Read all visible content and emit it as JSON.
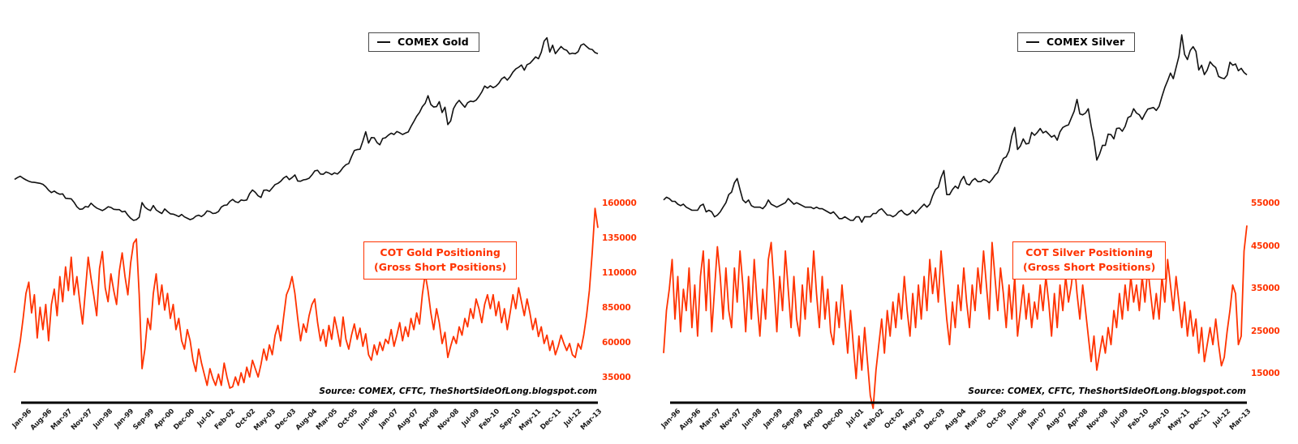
{
  "colors": {
    "price_line": "#111111",
    "cot_line": "#ff3300",
    "axis_line": "#000000",
    "legend_border": "#4a4a4a",
    "background": "#ffffff"
  },
  "x_labels": [
    "Jan-96",
    "Aug-96",
    "Mar-97",
    "Nov-97",
    "Jun-98",
    "Jan-99",
    "Sep-99",
    "Apr-00",
    "Dec-00",
    "Jul-01",
    "Feb-02",
    "Oct-02",
    "May-03",
    "Dec-03",
    "Aug-04",
    "Mar-05",
    "Oct-05",
    "Jun-06",
    "Jan-07",
    "Aug-07",
    "Apr-08",
    "Nov-08",
    "Jul-09",
    "Feb-10",
    "Sep-10",
    "May-11",
    "Dec-11",
    "Jul-12",
    "Mar-13"
  ],
  "chart_data": [
    {
      "type": "line",
      "legend": "COMEX Gold",
      "cot_label_line1": "COT Gold Positioning",
      "cot_label_line2": "(Gross Short Positions)",
      "source_note": "Source: COMEX, CFTC, TheShortSideOfLong.blogspot.com",
      "y_ticks": [
        160000,
        135000,
        110000,
        85000,
        60000,
        35000
      ],
      "x_range": [
        "Jan-96",
        "Mar-13"
      ],
      "series": [
        {
          "name": "COMEX Gold price (USD/oz)",
          "scale": "log",
          "ylim": [
            255,
            2400
          ],
          "color": "#111111",
          "values": [
            400,
            408,
            414,
            405,
            398,
            392,
            388,
            387,
            385,
            383,
            379,
            369,
            355,
            346,
            352,
            344,
            340,
            341,
            325,
            324,
            323,
            311,
            296,
            288,
            289,
            297,
            295,
            308,
            299,
            292,
            288,
            284,
            289,
            296,
            294,
            288,
            287,
            287,
            280,
            282,
            270,
            261,
            255,
            257,
            264,
            310,
            295,
            288,
            284,
            300,
            286,
            280,
            275,
            289,
            281,
            274,
            273,
            270,
            266,
            272,
            265,
            261,
            257,
            260,
            267,
            270,
            266,
            272,
            283,
            281,
            275,
            276,
            281,
            295,
            301,
            302,
            314,
            321,
            313,
            310,
            319,
            317,
            319,
            342,
            356,
            347,
            334,
            328,
            355,
            356,
            351,
            364,
            378,
            383,
            392,
            406,
            414,
            399,
            408,
            420,
            393,
            392,
            398,
            400,
            405,
            420,
            439,
            442,
            424,
            423,
            434,
            429,
            421,
            430,
            424,
            437,
            456,
            470,
            476,
            513,
            549,
            555,
            557,
            610,
            675,
            596,
            633,
            632,
            599,
            585,
            627,
            632,
            650,
            664,
            655,
            677,
            667,
            655,
            665,
            673,
            715,
            755,
            800,
            834,
            889,
            922,
            1003,
            910,
            885,
            889,
            939,
            833,
            884,
            730,
            760,
            870,
            919,
            952,
            916,
            883,
            928,
            945,
            939,
            955,
            995,
            1045,
            1115,
            1090,
            1118,
            1095,
            1113,
            1148,
            1205,
            1232,
            1190,
            1235,
            1300,
            1345,
            1370,
            1405,
            1327,
            1410,
            1430,
            1480,
            1535,
            1505,
            1615,
            1825,
            1895,
            1620,
            1745,
            1590,
            1655,
            1720,
            1670,
            1650,
            1585,
            1600,
            1590,
            1625,
            1745,
            1770,
            1720,
            1675,
            1665,
            1610,
            1590
          ]
        },
        {
          "name": "COT Gold Gross Short Positions (contracts)",
          "scale": "linear",
          "color": "#ff3300",
          "values": [
            39000,
            50000,
            62000,
            78000,
            96000,
            104000,
            82000,
            95000,
            64000,
            86000,
            70000,
            88000,
            62000,
            88000,
            99000,
            80000,
            108000,
            90000,
            115000,
            98000,
            122000,
            95000,
            108000,
            90000,
            74000,
            98000,
            122000,
            107000,
            94000,
            80000,
            114000,
            126000,
            100000,
            90000,
            110000,
            98000,
            88000,
            112000,
            125000,
            108000,
            95000,
            118000,
            132000,
            135000,
            95000,
            42000,
            56000,
            78000,
            70000,
            96000,
            110000,
            88000,
            102000,
            84000,
            96000,
            78000,
            88000,
            70000,
            78000,
            62000,
            56000,
            70000,
            62000,
            48000,
            40000,
            56000,
            46000,
            38000,
            30000,
            42000,
            35000,
            30000,
            38000,
            30000,
            46000,
            36000,
            28000,
            29000,
            36000,
            30000,
            39000,
            32000,
            43000,
            36000,
            48000,
            42000,
            36000,
            45000,
            56000,
            48000,
            59000,
            52000,
            66000,
            73000,
            62000,
            79000,
            95000,
            100000,
            108000,
            96000,
            78000,
            62000,
            74000,
            68000,
            80000,
            88000,
            92000,
            75000,
            62000,
            70000,
            58000,
            73000,
            63000,
            79000,
            69000,
            58000,
            79000,
            63000,
            56000,
            66000,
            74000,
            63000,
            71000,
            58000,
            67000,
            52000,
            48000,
            59000,
            52000,
            61000,
            55000,
            63000,
            60000,
            70000,
            58000,
            66000,
            75000,
            62000,
            72000,
            65000,
            78000,
            70000,
            82000,
            74000,
            95000,
            110000,
            98000,
            82000,
            70000,
            85000,
            75000,
            60000,
            68000,
            50000,
            58000,
            65000,
            60000,
            72000,
            66000,
            78000,
            72000,
            85000,
            78000,
            92000,
            85000,
            75000,
            88000,
            95000,
            85000,
            95000,
            80000,
            90000,
            75000,
            85000,
            70000,
            82000,
            95000,
            85000,
            100000,
            90000,
            80000,
            92000,
            82000,
            70000,
            78000,
            65000,
            72000,
            60000,
            66000,
            55000,
            62000,
            52000,
            58000,
            66000,
            60000,
            55000,
            60000,
            52000,
            50000,
            60000,
            56000,
            66000,
            80000,
            98000,
            125000,
            157000,
            143000
          ]
        }
      ]
    },
    {
      "type": "line",
      "legend": "COMEX Silver",
      "cot_label_line1": "COT Silver Positioning",
      "cot_label_line2": "(Gross Short Positions)",
      "source_note": "Source: COMEX, CFTC, TheShortSideOfLong.blogspot.com",
      "y_ticks": [
        55000,
        45000,
        35000,
        25000,
        15000
      ],
      "x_range": [
        "Jan-96",
        "Mar-13"
      ],
      "series": [
        {
          "name": "COMEX Silver price (USD/oz)",
          "scale": "log",
          "ylim": [
            4.2,
            62
          ],
          "color": "#111111",
          "values": [
            5.5,
            5.7,
            5.6,
            5.4,
            5.4,
            5.2,
            5.1,
            5.2,
            5.0,
            4.9,
            4.8,
            4.8,
            4.8,
            5.1,
            5.2,
            4.7,
            4.8,
            4.7,
            4.4,
            4.5,
            4.7,
            5.0,
            5.3,
            5.9,
            6.1,
            6.9,
            7.3,
            6.3,
            5.5,
            5.3,
            5.5,
            5.1,
            5.0,
            5.0,
            5.0,
            4.9,
            5.1,
            5.5,
            5.2,
            5.1,
            5.0,
            5.1,
            5.2,
            5.3,
            5.6,
            5.4,
            5.2,
            5.3,
            5.2,
            5.1,
            5.0,
            5.0,
            5.0,
            4.9,
            5.0,
            4.9,
            4.9,
            4.8,
            4.7,
            4.6,
            4.7,
            4.5,
            4.3,
            4.3,
            4.4,
            4.3,
            4.2,
            4.2,
            4.4,
            4.4,
            4.1,
            4.4,
            4.4,
            4.4,
            4.6,
            4.6,
            4.8,
            4.9,
            4.7,
            4.5,
            4.5,
            4.4,
            4.5,
            4.7,
            4.8,
            4.6,
            4.5,
            4.6,
            4.8,
            4.6,
            4.8,
            5.0,
            5.2,
            5.0,
            5.2,
            5.8,
            6.3,
            6.5,
            7.4,
            8.1,
            5.9,
            5.9,
            6.3,
            6.6,
            6.4,
            7.1,
            7.5,
            6.8,
            6.7,
            7.1,
            7.3,
            7.0,
            7.0,
            7.2,
            7.1,
            6.9,
            7.2,
            7.6,
            7.9,
            8.7,
            9.5,
            9.7,
            10.5,
            12.8,
            14.3,
            10.7,
            11.2,
            12.3,
            11.5,
            11.6,
            13.4,
            12.9,
            13.4,
            14.1,
            13.3,
            13.6,
            13.1,
            12.6,
            12.9,
            12.1,
            13.5,
            14.3,
            14.6,
            14.8,
            16.2,
            17.7,
            20.7,
            17.1,
            16.9,
            17.3,
            18.3,
            14.6,
            12.1,
            9.3,
            10.1,
            11.3,
            11.3,
            13.1,
            13.0,
            12.3,
            14.1,
            14.2,
            13.6,
            14.5,
            16.3,
            16.6,
            18.3,
            17.3,
            16.9,
            15.9,
            17.1,
            18.2,
            18.4,
            18.6,
            17.9,
            18.9,
            21.5,
            24.2,
            26.5,
            29.3,
            27.2,
            31.5,
            36.5,
            48.5,
            37.5,
            35.0,
            39.5,
            41.5,
            39.0,
            30.5,
            32.5,
            28.7,
            30.5,
            34.0,
            32.5,
            31.5,
            28.0,
            27.5,
            27.2,
            28.5,
            33.8,
            32.5,
            33.0,
            30.2,
            31.2,
            29.5,
            28.6
          ]
        },
        {
          "name": "COT Silver Gross Short Positions (contracts)",
          "scale": "linear",
          "color": "#ff3300",
          "values": [
            20000,
            30000,
            35000,
            42000,
            28000,
            38000,
            25000,
            35000,
            30000,
            40000,
            26000,
            36000,
            24000,
            38000,
            44000,
            30000,
            42000,
            25000,
            35000,
            45000,
            38000,
            28000,
            40000,
            30000,
            26000,
            40000,
            32000,
            44000,
            36000,
            25000,
            38000,
            28000,
            42000,
            32000,
            24000,
            35000,
            28000,
            42000,
            46000,
            36000,
            25000,
            38000,
            30000,
            44000,
            35000,
            26000,
            38000,
            28000,
            24000,
            36000,
            28000,
            40000,
            32000,
            44000,
            34000,
            26000,
            38000,
            28000,
            35000,
            25000,
            22000,
            32000,
            26000,
            36000,
            28000,
            20000,
            30000,
            22000,
            14000,
            24000,
            16000,
            26000,
            18000,
            10000,
            7000,
            16000,
            22000,
            28000,
            20000,
            30000,
            24000,
            32000,
            26000,
            34000,
            28000,
            38000,
            30000,
            24000,
            34000,
            26000,
            36000,
            28000,
            38000,
            30000,
            42000,
            34000,
            40000,
            32000,
            44000,
            36000,
            28000,
            22000,
            32000,
            26000,
            36000,
            30000,
            40000,
            32000,
            26000,
            36000,
            30000,
            40000,
            34000,
            44000,
            36000,
            28000,
            46000,
            38000,
            30000,
            40000,
            34000,
            26000,
            36000,
            28000,
            38000,
            24000,
            30000,
            36000,
            28000,
            34000,
            26000,
            32000,
            28000,
            36000,
            30000,
            38000,
            32000,
            24000,
            34000,
            26000,
            36000,
            30000,
            38000,
            32000,
            36000,
            42000,
            34000,
            28000,
            36000,
            30000,
            24000,
            18000,
            24000,
            16000,
            20000,
            24000,
            20000,
            26000,
            22000,
            30000,
            26000,
            34000,
            28000,
            36000,
            30000,
            38000,
            32000,
            36000,
            30000,
            38000,
            32000,
            40000,
            34000,
            28000,
            34000,
            28000,
            38000,
            32000,
            42000,
            36000,
            30000,
            38000,
            32000,
            26000,
            32000,
            24000,
            30000,
            24000,
            28000,
            20000,
            26000,
            18000,
            22000,
            26000,
            22000,
            28000,
            22000,
            17000,
            19000,
            25000,
            30000,
            36000,
            34000,
            22000,
            24000,
            44000,
            50000
          ]
        }
      ]
    }
  ]
}
